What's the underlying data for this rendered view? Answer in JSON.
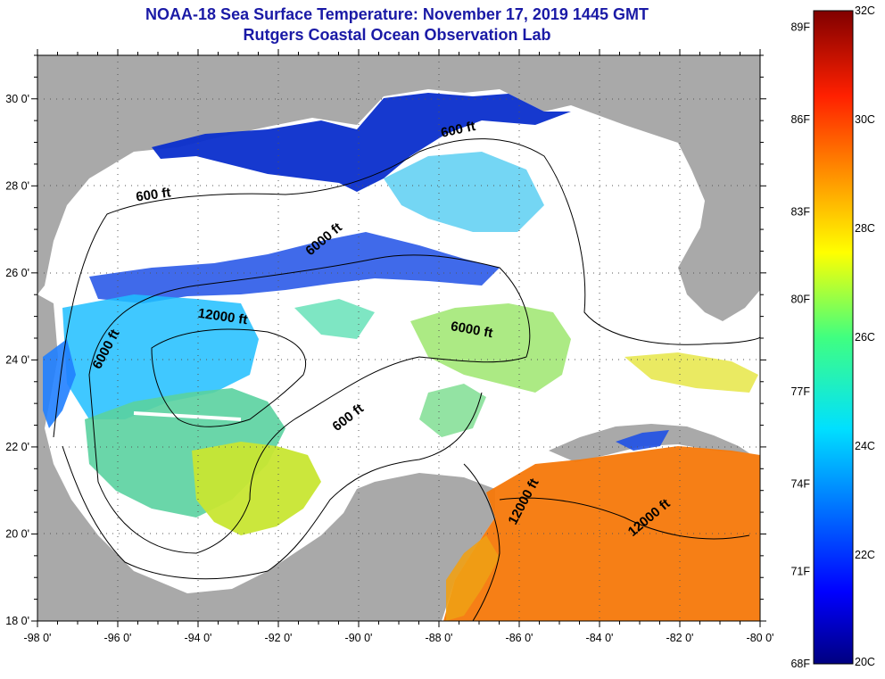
{
  "title": {
    "line1": "NOAA-18 Sea Surface Temperature:  November 17, 2019 1445 GMT",
    "line2": "Rutgers Coastal Ocean Observation Lab"
  },
  "colors": {
    "title": "#1a1aa6",
    "land": "#a9a9a9",
    "cloud": "#ffffff",
    "contour": "#000000",
    "dot_grid": "#555555"
  },
  "map": {
    "lat_range": [
      18,
      31
    ],
    "lon_range": [
      -98,
      -80
    ],
    "lat_ticks": [
      "18 0'",
      "20 0'",
      "22 0'",
      "24 0'",
      "26 0'",
      "28 0'",
      "30 0'"
    ],
    "lon_ticks": [
      "-98 0'",
      "-96 0'",
      "-94 0'",
      "-92 0'",
      "-90 0'",
      "-88 0'",
      "-86 0'",
      "-84 0'",
      "-82 0'",
      "-80 0'"
    ],
    "contour_labels": [
      {
        "text": "600 ft",
        "lon": -95.1,
        "lat": 27.7,
        "rotation": -8
      },
      {
        "text": "600 ft",
        "lon": -87.5,
        "lat": 29.2,
        "rotation": -12
      },
      {
        "text": "6000 ft",
        "lon": -90.8,
        "lat": 26.7,
        "rotation": -40
      },
      {
        "text": "12000 ft",
        "lon": -93.4,
        "lat": 24.9,
        "rotation": 8
      },
      {
        "text": "6000 ft",
        "lon": -96.2,
        "lat": 24.2,
        "rotation": -62
      },
      {
        "text": "6000 ft",
        "lon": -87.2,
        "lat": 24.6,
        "rotation": 10
      },
      {
        "text": "600 ft",
        "lon": -90.2,
        "lat": 22.6,
        "rotation": -38
      },
      {
        "text": "12000 ft",
        "lon": -85.8,
        "lat": 20.7,
        "rotation": -62
      },
      {
        "text": "12000 ft",
        "lon": -82.7,
        "lat": 20.3,
        "rotation": -40
      }
    ]
  },
  "colorbar": {
    "celsius_min": 20,
    "celsius_max": 32,
    "celsius_labels": [
      "20C",
      "22C",
      "24C",
      "26C",
      "28C",
      "30C",
      "32C"
    ],
    "fahrenheit_labels": [
      {
        "text": "68F",
        "celsius": 20
      },
      {
        "text": "71F",
        "celsius": 21.7
      },
      {
        "text": "74F",
        "celsius": 23.3
      },
      {
        "text": "77F",
        "celsius": 25
      },
      {
        "text": "80F",
        "celsius": 26.7
      },
      {
        "text": "83F",
        "celsius": 28.3
      },
      {
        "text": "86F",
        "celsius": 30
      },
      {
        "text": "89F",
        "celsius": 31.7
      }
    ]
  }
}
